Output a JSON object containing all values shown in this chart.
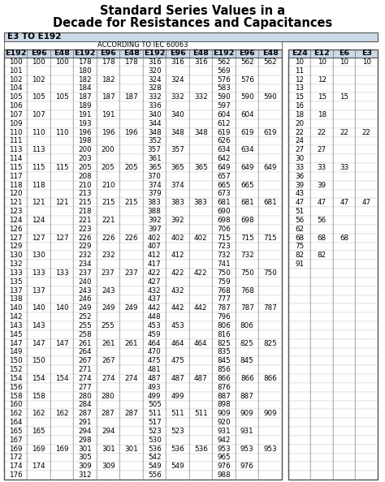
{
  "title_line1": "Standard Series Values in a",
  "title_line2": "Decade for Resistances and Capacitances",
  "subtitle_box": "E3 TO E192",
  "according_to": "ACCORDING TO IEC 60063",
  "headers_left": [
    "E192",
    "E96",
    "E48",
    "E192",
    "E96",
    "E48",
    "E192",
    "E96",
    "E48",
    "E192",
    "E96",
    "E48"
  ],
  "headers_right": [
    "E24",
    "E12",
    "E6",
    "E3"
  ],
  "table_data_left": [
    [
      "100",
      "100",
      "100",
      "178",
      "178",
      "178",
      "316",
      "316",
      "316",
      "562",
      "562",
      "562"
    ],
    [
      "101",
      "",
      "",
      "180",
      "",
      "",
      "320",
      "",
      "",
      "569",
      "",
      ""
    ],
    [
      "102",
      "102",
      "",
      "182",
      "182",
      "",
      "324",
      "324",
      "",
      "576",
      "576",
      ""
    ],
    [
      "104",
      "",
      "",
      "184",
      "",
      "",
      "328",
      "",
      "",
      "583",
      "",
      ""
    ],
    [
      "105",
      "105",
      "105",
      "187",
      "187",
      "187",
      "332",
      "332",
      "332",
      "590",
      "590",
      "590"
    ],
    [
      "106",
      "",
      "",
      "189",
      "",
      "",
      "336",
      "",
      "",
      "597",
      "",
      ""
    ],
    [
      "107",
      "107",
      "",
      "191",
      "191",
      "",
      "340",
      "340",
      "",
      "604",
      "604",
      ""
    ],
    [
      "109",
      "",
      "",
      "193",
      "",
      "",
      "344",
      "",
      "",
      "612",
      "",
      ""
    ],
    [
      "110",
      "110",
      "110",
      "196",
      "196",
      "196",
      "348",
      "348",
      "348",
      "619",
      "619",
      "619"
    ],
    [
      "111",
      "",
      "",
      "198",
      "",
      "",
      "352",
      "",
      "",
      "626",
      "",
      ""
    ],
    [
      "113",
      "113",
      "",
      "200",
      "200",
      "",
      "357",
      "357",
      "",
      "634",
      "634",
      ""
    ],
    [
      "114",
      "",
      "",
      "203",
      "",
      "",
      "361",
      "",
      "",
      "642",
      "",
      ""
    ],
    [
      "115",
      "115",
      "115",
      "205",
      "205",
      "205",
      "365",
      "365",
      "365",
      "649",
      "649",
      "649"
    ],
    [
      "117",
      "",
      "",
      "208",
      "",
      "",
      "370",
      "",
      "",
      "657",
      "",
      ""
    ],
    [
      "118",
      "118",
      "",
      "210",
      "210",
      "",
      "374",
      "374",
      "",
      "665",
      "665",
      ""
    ],
    [
      "120",
      "",
      "",
      "213",
      "",
      "",
      "379",
      "",
      "",
      "673",
      "",
      ""
    ],
    [
      "121",
      "121",
      "121",
      "215",
      "215",
      "215",
      "383",
      "383",
      "383",
      "681",
      "681",
      "681"
    ],
    [
      "123",
      "",
      "",
      "218",
      "",
      "",
      "388",
      "",
      "",
      "690",
      "",
      ""
    ],
    [
      "124",
      "124",
      "",
      "221",
      "221",
      "",
      "392",
      "392",
      "",
      "698",
      "698",
      ""
    ],
    [
      "126",
      "",
      "",
      "223",
      "",
      "",
      "397",
      "",
      "",
      "706",
      "",
      ""
    ],
    [
      "127",
      "127",
      "127",
      "226",
      "226",
      "226",
      "402",
      "402",
      "402",
      "715",
      "715",
      "715"
    ],
    [
      "129",
      "",
      "",
      "229",
      "",
      "",
      "407",
      "",
      "",
      "723",
      "",
      ""
    ],
    [
      "130",
      "130",
      "",
      "232",
      "232",
      "",
      "412",
      "412",
      "",
      "732",
      "732",
      ""
    ],
    [
      "132",
      "",
      "",
      "234",
      "",
      "",
      "417",
      "",
      "",
      "741",
      "",
      ""
    ],
    [
      "133",
      "133",
      "133",
      "237",
      "237",
      "237",
      "422",
      "422",
      "422",
      "750",
      "750",
      "750"
    ],
    [
      "135",
      "",
      "",
      "240",
      "",
      "",
      "427",
      "",
      "",
      "759",
      "",
      ""
    ],
    [
      "137",
      "137",
      "",
      "243",
      "243",
      "",
      "432",
      "432",
      "",
      "768",
      "768",
      ""
    ],
    [
      "138",
      "",
      "",
      "246",
      "",
      "",
      "437",
      "",
      "",
      "777",
      "",
      ""
    ],
    [
      "140",
      "140",
      "140",
      "249",
      "249",
      "249",
      "442",
      "442",
      "442",
      "787",
      "787",
      "787"
    ],
    [
      "142",
      "",
      "",
      "252",
      "",
      "",
      "448",
      "",
      "",
      "796",
      "",
      ""
    ],
    [
      "143",
      "143",
      "",
      "255",
      "255",
      "",
      "453",
      "453",
      "",
      "806",
      "806",
      ""
    ],
    [
      "145",
      "",
      "",
      "258",
      "",
      "",
      "459",
      "",
      "",
      "816",
      "",
      ""
    ],
    [
      "147",
      "147",
      "147",
      "261",
      "261",
      "261",
      "464",
      "464",
      "464",
      "825",
      "825",
      "825"
    ],
    [
      "149",
      "",
      "",
      "264",
      "",
      "",
      "470",
      "",
      "",
      "835",
      "",
      ""
    ],
    [
      "150",
      "150",
      "",
      "267",
      "267",
      "",
      "475",
      "475",
      "",
      "845",
      "845",
      ""
    ],
    [
      "152",
      "",
      "",
      "271",
      "",
      "",
      "481",
      "",
      "",
      "856",
      "",
      ""
    ],
    [
      "154",
      "154",
      "154",
      "274",
      "274",
      "274",
      "487",
      "487",
      "487",
      "866",
      "866",
      "866"
    ],
    [
      "156",
      "",
      "",
      "277",
      "",
      "",
      "493",
      "",
      "",
      "876",
      "",
      ""
    ],
    [
      "158",
      "158",
      "",
      "280",
      "280",
      "",
      "499",
      "499",
      "",
      "887",
      "887",
      ""
    ],
    [
      "160",
      "",
      "",
      "284",
      "",
      "",
      "505",
      "",
      "",
      "898",
      "",
      ""
    ],
    [
      "162",
      "162",
      "162",
      "287",
      "287",
      "287",
      "511",
      "511",
      "511",
      "909",
      "909",
      "909"
    ],
    [
      "164",
      "",
      "",
      "291",
      "",
      "",
      "517",
      "",
      "",
      "920",
      "",
      ""
    ],
    [
      "165",
      "165",
      "",
      "294",
      "294",
      "",
      "523",
      "523",
      "",
      "931",
      "931",
      ""
    ],
    [
      "167",
      "",
      "",
      "298",
      "",
      "",
      "530",
      "",
      "",
      "942",
      "",
      ""
    ],
    [
      "169",
      "169",
      "169",
      "301",
      "301",
      "301",
      "536",
      "536",
      "536",
      "953",
      "953",
      "953"
    ],
    [
      "172",
      "",
      "",
      "305",
      "",
      "",
      "542",
      "",
      "",
      "965",
      "",
      ""
    ],
    [
      "174",
      "174",
      "",
      "309",
      "309",
      "",
      "549",
      "549",
      "",
      "976",
      "976",
      ""
    ],
    [
      "176",
      "",
      "",
      "312",
      "",
      "",
      "556",
      "",
      "",
      "988",
      "",
      ""
    ]
  ],
  "table_data_right": [
    [
      "10",
      "10",
      "10",
      "10"
    ],
    [
      "11",
      "",
      "",
      ""
    ],
    [
      "12",
      "12",
      "",
      ""
    ],
    [
      "13",
      "",
      "",
      ""
    ],
    [
      "15",
      "15",
      "15",
      ""
    ],
    [
      "16",
      "",
      "",
      ""
    ],
    [
      "18",
      "18",
      "",
      ""
    ],
    [
      "20",
      "",
      "",
      ""
    ],
    [
      "22",
      "22",
      "22",
      "22"
    ],
    [
      "24",
      "",
      "",
      ""
    ],
    [
      "27",
      "27",
      "",
      ""
    ],
    [
      "30",
      "",
      "",
      ""
    ],
    [
      "33",
      "33",
      "33",
      ""
    ],
    [
      "36",
      "",
      "",
      ""
    ],
    [
      "39",
      "39",
      "",
      ""
    ],
    [
      "43",
      "",
      "",
      ""
    ],
    [
      "47",
      "47",
      "47",
      "47"
    ],
    [
      "51",
      "",
      "",
      ""
    ],
    [
      "56",
      "56",
      "",
      ""
    ],
    [
      "62",
      "",
      "",
      ""
    ],
    [
      "68",
      "68",
      "68",
      ""
    ],
    [
      "75",
      "",
      "",
      ""
    ],
    [
      "82",
      "82",
      "",
      ""
    ],
    [
      "91",
      "",
      "",
      ""
    ],
    [
      "",
      "",
      "",
      ""
    ],
    [
      "",
      "",
      "",
      ""
    ],
    [
      "",
      "",
      "",
      ""
    ],
    [
      "",
      "",
      "",
      ""
    ],
    [
      "",
      "",
      "",
      ""
    ],
    [
      "",
      "",
      "",
      ""
    ],
    [
      "",
      "",
      "",
      ""
    ],
    [
      "",
      "",
      "",
      ""
    ],
    [
      "",
      "",
      "",
      ""
    ],
    [
      "",
      "",
      "",
      ""
    ],
    [
      "",
      "",
      "",
      ""
    ],
    [
      "",
      "",
      "",
      ""
    ],
    [
      "",
      "",
      "",
      ""
    ],
    [
      "",
      "",
      "",
      ""
    ],
    [
      "",
      "",
      "",
      ""
    ],
    [
      "",
      "",
      "",
      ""
    ],
    [
      "",
      "",
      "",
      ""
    ],
    [
      "",
      "",
      "",
      ""
    ],
    [
      "",
      "",
      "",
      ""
    ],
    [
      "",
      "",
      "",
      ""
    ],
    [
      "",
      "",
      "",
      ""
    ],
    [
      "",
      "",
      "",
      ""
    ],
    [
      "",
      "",
      "",
      ""
    ],
    [
      "",
      "",
      "",
      ""
    ]
  ],
  "header_bg_color": "#ccd9e8",
  "subtitle_bg_color": "#ccd9e8",
  "grid_color": "#888888",
  "bg_color": "#ffffff",
  "title_font_size": 10.5,
  "header_font_size": 6.8,
  "cell_font_size": 6.3
}
